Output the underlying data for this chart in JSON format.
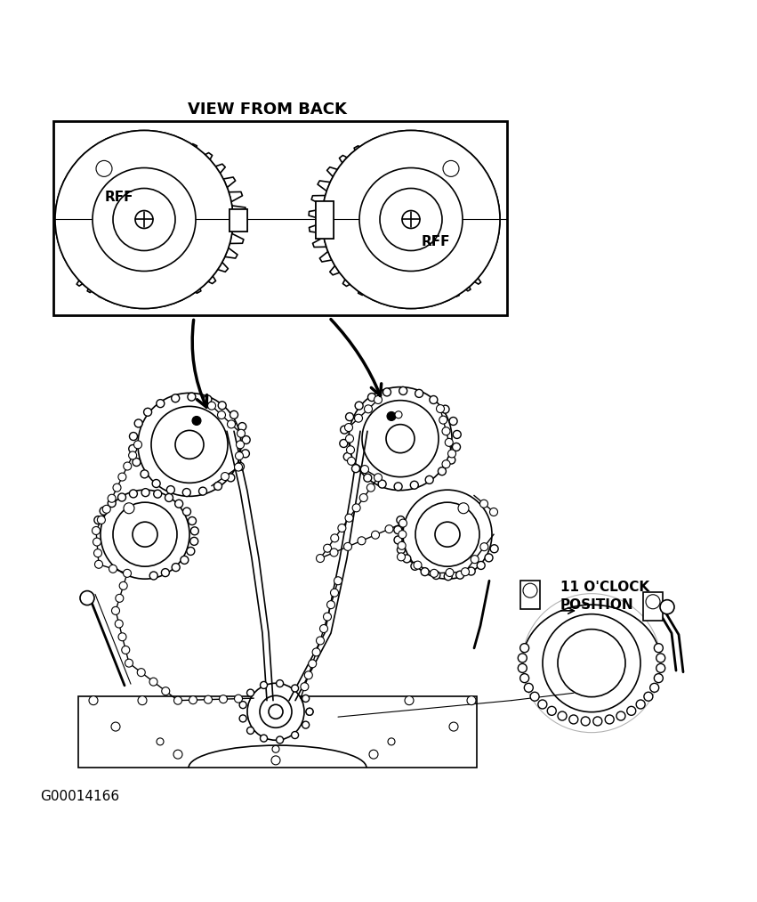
{
  "bg_color": "#ffffff",
  "line_color": "#000000",
  "text_color": "#000000",
  "label_view_from_back": "VIEW FROM BACK",
  "label_rff_left": "RFF",
  "label_rff_right": "RFF",
  "label_11oclock": "11 O'CLOCK\nPOSITION",
  "label_code": "G00014166",
  "fig_width": 8.51,
  "fig_height": 10.13,
  "dpi": 100
}
